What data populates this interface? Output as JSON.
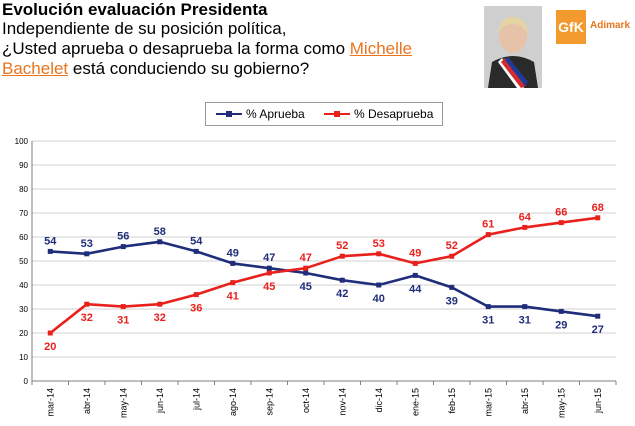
{
  "header": {
    "title": "Evolución evaluación Presidenta",
    "question_line1": "Independiente de su posición política,",
    "question_pre": "¿Usted aprueba o desaprueba la forma como ",
    "question_name_part1": "Michelle",
    "question_name_part2": "Bachelet",
    "question_post": " está conduciendo su gobierno?"
  },
  "logo": {
    "mark": "GfK",
    "text": "Adimark"
  },
  "colors": {
    "aprueba": "#1f2d7b",
    "desaprueba": "#e8211d",
    "grid": "#d0d0d0",
    "axis": "#7f7f7f"
  },
  "chart_data": {
    "type": "line",
    "title": "",
    "xlabel": "",
    "ylabel": "",
    "ylim": [
      0,
      100
    ],
    "yticks": [
      "0",
      "10",
      "20",
      "30",
      "40",
      "50",
      "60",
      "70",
      "80",
      "90",
      "100"
    ],
    "grid": true,
    "legend_position": "top",
    "categories": [
      "mar-14",
      "abr-14",
      "may-14",
      "jun-14",
      "jul-14",
      "ago-14",
      "sep-14",
      "oct-14",
      "nov-14",
      "dic-14",
      "ene-15",
      "feb-15",
      "mar-15",
      "abr-15",
      "may-15",
      "jun-15"
    ],
    "series": [
      {
        "name": "% Aprueba",
        "values": [
          54,
          53,
          56,
          58,
          54,
          49,
          47,
          45,
          42,
          40,
          44,
          39,
          31,
          31,
          29,
          27
        ]
      },
      {
        "name": "% Desaprueba",
        "values": [
          20,
          32,
          31,
          32,
          36,
          41,
          45,
          47,
          52,
          53,
          49,
          52,
          61,
          64,
          66,
          68
        ]
      }
    ]
  }
}
